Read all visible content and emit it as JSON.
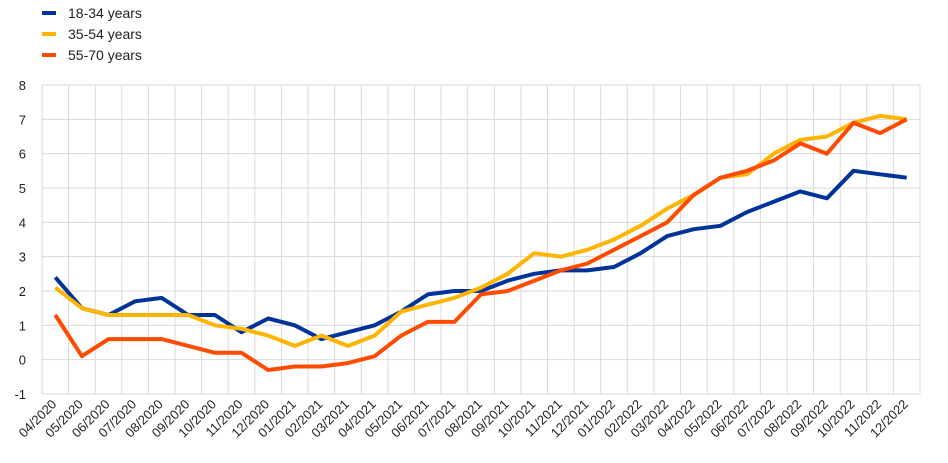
{
  "chart_data": {
    "type": "line",
    "title": "",
    "xlabel": "",
    "ylabel": "",
    "ylim": [
      -1,
      8
    ],
    "yticks": [
      -1,
      0,
      1,
      2,
      3,
      4,
      5,
      6,
      7,
      8
    ],
    "grid": true,
    "legend_position": "top-left",
    "categories": [
      "04/2020",
      "05/2020",
      "06/2020",
      "07/2020",
      "08/2020",
      "09/2020",
      "10/2020",
      "11/2020",
      "12/2020",
      "01/2021",
      "02/2021",
      "03/2021",
      "04/2021",
      "05/2021",
      "06/2021",
      "07/2021",
      "08/2021",
      "09/2021",
      "10/2021",
      "11/2021",
      "12/2021",
      "01/2022",
      "02/2022",
      "03/2022",
      "04/2022",
      "05/2022",
      "06/2022",
      "07/2022",
      "08/2022",
      "09/2022",
      "10/2022",
      "11/2022",
      "12/2022"
    ],
    "series": [
      {
        "name": "18-34 years",
        "color": "#003399",
        "values": [
          2.4,
          1.5,
          1.3,
          1.7,
          1.8,
          1.3,
          1.3,
          0.8,
          1.2,
          1.0,
          0.6,
          0.8,
          1.0,
          1.4,
          1.9,
          2.0,
          2.0,
          2.3,
          2.5,
          2.6,
          2.6,
          2.7,
          3.1,
          3.6,
          3.8,
          3.9,
          4.3,
          4.6,
          4.9,
          4.7,
          5.5,
          5.4,
          5.3
        ]
      },
      {
        "name": "35-54 years",
        "color": "#FFB400",
        "values": [
          2.1,
          1.5,
          1.3,
          1.3,
          1.3,
          1.3,
          1.0,
          0.9,
          0.7,
          0.4,
          0.7,
          0.4,
          0.7,
          1.4,
          1.6,
          1.8,
          2.1,
          2.5,
          3.1,
          3.0,
          3.2,
          3.5,
          3.9,
          4.4,
          4.8,
          5.3,
          5.4,
          6.0,
          6.4,
          6.5,
          6.9,
          7.1,
          7.0
        ]
      },
      {
        "name": "55-70 years",
        "color": "#FF4B00",
        "values": [
          1.3,
          0.1,
          0.6,
          0.6,
          0.6,
          0.4,
          0.2,
          0.2,
          -0.3,
          -0.2,
          -0.2,
          -0.1,
          0.1,
          0.7,
          1.1,
          1.1,
          1.9,
          2.0,
          2.3,
          2.6,
          2.8,
          3.2,
          3.6,
          4.0,
          4.8,
          5.3,
          5.5,
          5.8,
          6.3,
          6.0,
          6.9,
          6.6,
          7.0
        ]
      }
    ]
  }
}
